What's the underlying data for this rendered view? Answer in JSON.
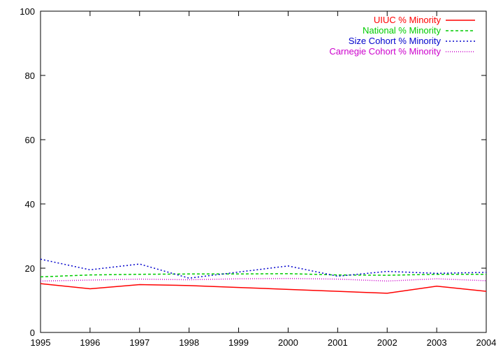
{
  "chart_data": {
    "type": "line",
    "title": "",
    "xlabel": "",
    "ylabel": "",
    "x": [
      1995,
      1996,
      1997,
      1998,
      1999,
      2000,
      2001,
      2002,
      2003,
      2004
    ],
    "xlim": [
      1995,
      2004
    ],
    "ylim": [
      0,
      100
    ],
    "x_ticks": [
      "1995",
      "1996",
      "1997",
      "1998",
      "1999",
      "2000",
      "2001",
      "2002",
      "2003",
      "2004"
    ],
    "y_ticks": [
      "0",
      "20",
      "40",
      "60",
      "80",
      "100"
    ],
    "grid": false,
    "legend_position": "top-right",
    "series": [
      {
        "name": "UIUC % Minority",
        "color": "#ff0000",
        "dash": "solid",
        "values": [
          15.2,
          13.6,
          14.9,
          14.6,
          14.0,
          13.4,
          12.8,
          12.2,
          14.4,
          12.8
        ]
      },
      {
        "name": "National % Minority",
        "color": "#00cc00",
        "dash": "dashed",
        "values": [
          17.3,
          17.9,
          18.1,
          18.2,
          18.2,
          18.3,
          17.9,
          17.8,
          18.1,
          18.1
        ]
      },
      {
        "name": "Size Cohort % Minority",
        "color": "#0000cc",
        "dash": "dotted",
        "values": [
          22.8,
          19.5,
          21.3,
          16.9,
          18.8,
          20.7,
          17.5,
          19.0,
          18.4,
          18.7
        ]
      },
      {
        "name": "Carnegie Cohort % Minority",
        "color": "#cc00cc",
        "dash": "fine-dotted",
        "values": [
          16.0,
          16.3,
          16.6,
          16.4,
          16.7,
          16.8,
          16.6,
          16.0,
          16.7,
          16.1
        ]
      }
    ]
  }
}
